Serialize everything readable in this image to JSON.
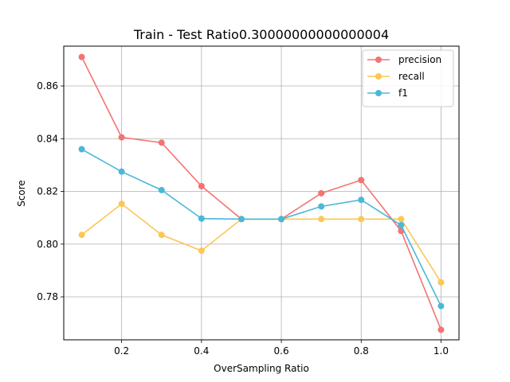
{
  "chart_data": {
    "type": "line",
    "title": "Train - Test Ratio0.30000000000000004",
    "xlabel": "OverSampling Ratio",
    "ylabel": "Score",
    "x": [
      0.1,
      0.2,
      0.3,
      0.4,
      0.5,
      0.6,
      0.7,
      0.8,
      0.9,
      1.0
    ],
    "xlim": [
      0.055,
      1.045
    ],
    "ylim": [
      0.7637,
      0.8751
    ],
    "xticks": [
      0.2,
      0.4,
      0.6,
      0.8,
      1.0
    ],
    "xtick_labels": [
      "0.2",
      "0.4",
      "0.6",
      "0.8",
      "1.0"
    ],
    "yticks": [
      0.78,
      0.8,
      0.82,
      0.84,
      0.86
    ],
    "ytick_labels": [
      "0.78",
      "0.80",
      "0.82",
      "0.84",
      "0.86"
    ],
    "grid": true,
    "legend_position": "top-right",
    "series": [
      {
        "name": "precision",
        "color": "#f47373",
        "values": [
          0.871,
          0.8405,
          0.8385,
          0.822,
          0.8095,
          0.8095,
          0.8193,
          0.8243,
          0.805,
          0.7675
        ]
      },
      {
        "name": "recall",
        "color": "#fbc756",
        "values": [
          0.8035,
          0.8153,
          0.8035,
          0.7975,
          0.8095,
          0.8095,
          0.8095,
          0.8095,
          0.8095,
          0.7855
        ]
      },
      {
        "name": "f1",
        "color": "#4ab8d9",
        "values": [
          0.836,
          0.8275,
          0.8205,
          0.8097,
          0.8095,
          0.8095,
          0.8143,
          0.8168,
          0.8072,
          0.7765
        ]
      }
    ]
  }
}
